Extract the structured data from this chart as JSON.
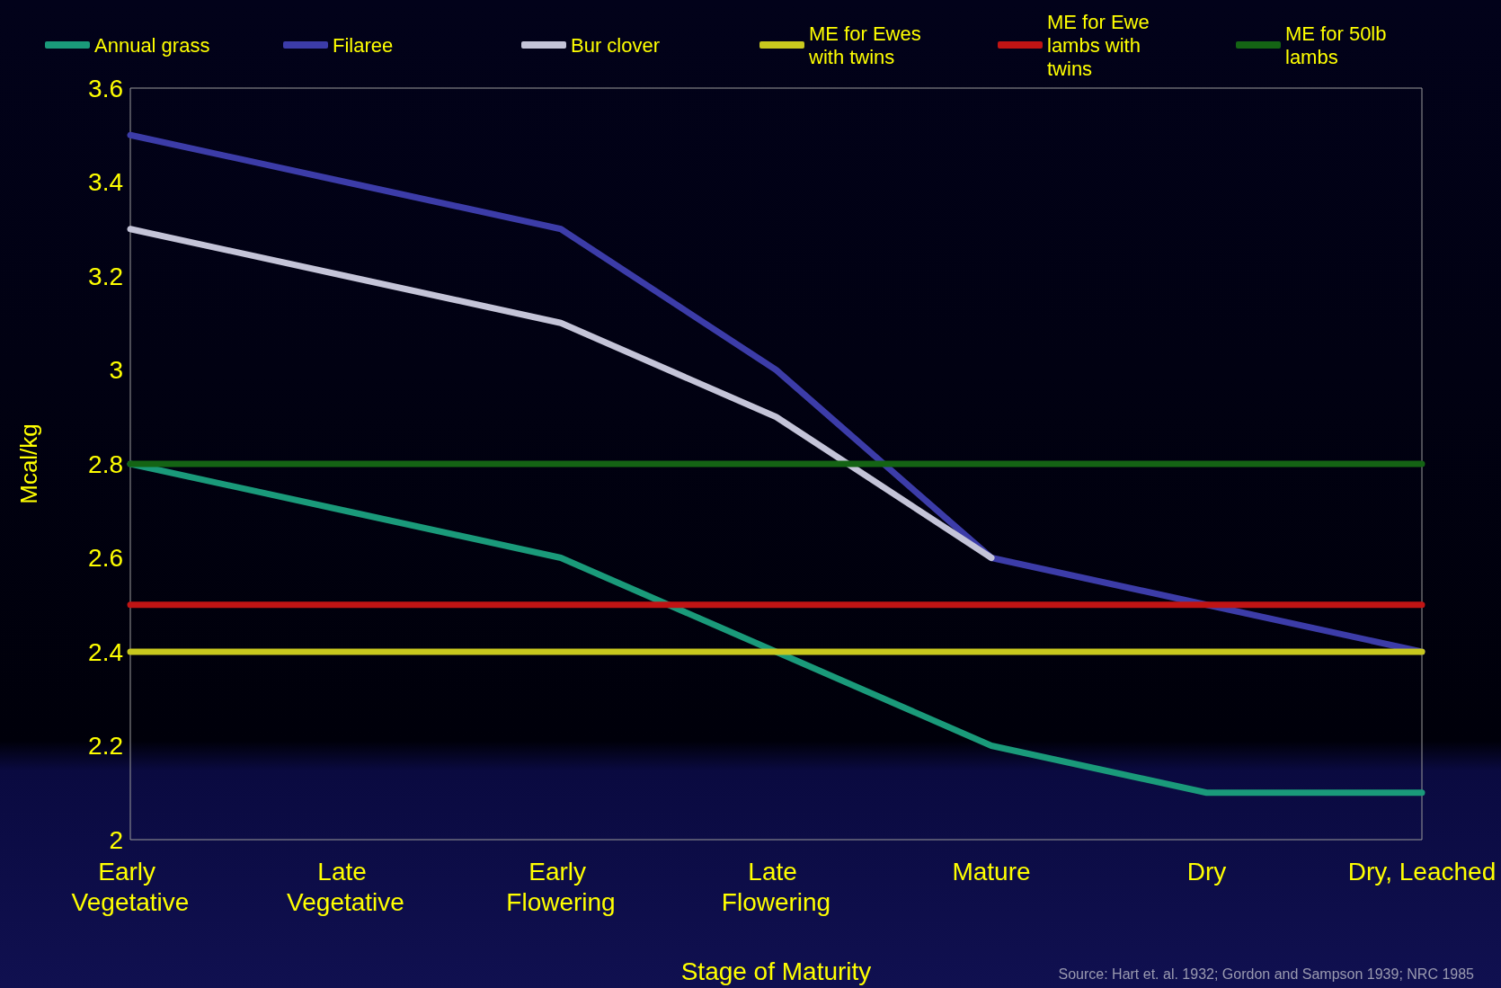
{
  "chart_data": {
    "type": "line",
    "xlabel": "Stage of Maturity",
    "ylabel": "Mcal/kg",
    "categories": [
      "Early Vegetative",
      "Late Vegetative",
      "Early Flowering",
      "Late Flowering",
      "Mature",
      "Dry",
      "Dry, Leached"
    ],
    "series": [
      {
        "name": "Annual grass",
        "color": "#1a9a7a",
        "values": [
          2.8,
          2.7,
          2.6,
          2.4,
          2.2,
          2.1,
          2.1
        ]
      },
      {
        "name": "Filaree",
        "color": "#3c3ca8",
        "values": [
          3.5,
          3.4,
          3.3,
          3.0,
          2.6,
          2.5,
          2.4
        ]
      },
      {
        "name": "Bur clover",
        "color": "#c4c4d8",
        "values": [
          3.3,
          3.2,
          3.1,
          2.9,
          2.6,
          null,
          null
        ]
      },
      {
        "name": "ME for Ewes with twins",
        "color": "#c8c81e",
        "values": [
          2.4,
          2.4,
          2.4,
          2.4,
          2.4,
          2.4,
          2.4
        ]
      },
      {
        "name": "ME for Ewe lambs with twins",
        "color": "#c01414",
        "values": [
          2.5,
          2.5,
          2.5,
          2.5,
          2.5,
          2.5,
          2.5
        ]
      },
      {
        "name": "ME for 50lb lambs",
        "color": "#146414",
        "values": [
          2.8,
          2.8,
          2.8,
          2.8,
          2.8,
          2.8,
          2.8
        ]
      }
    ],
    "ylim": [
      2,
      3.6
    ],
    "yticks": [
      2,
      2.2,
      2.4,
      2.6,
      2.8,
      3,
      3.2,
      3.4,
      3.6
    ],
    "legend": "top",
    "marker": "none",
    "line_style": "solid",
    "annotations": [
      "Source: Hart et. al. 1932; Gordon and Sampson 1939; NRC 1985"
    ]
  }
}
